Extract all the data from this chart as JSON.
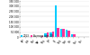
{
  "months": [
    "Jan",
    "Feb",
    "Mar",
    "Apr",
    "May",
    "Jun",
    "Jul",
    "Aug",
    "Sep",
    "Oct",
    "Nov",
    "Dec"
  ],
  "series_2013": [
    300,
    300,
    1500,
    6000,
    40000,
    50000,
    310000,
    85000,
    70000,
    30000,
    6000,
    800
  ],
  "series_avg": [
    800,
    800,
    2500,
    10000,
    50000,
    60000,
    95000,
    80000,
    65000,
    28000,
    6000,
    1200
  ],
  "color_2013": "#00ccff",
  "color_avg": "#ff3399",
  "ylim": [
    0,
    350000
  ],
  "yticks": [
    0,
    50000,
    100000,
    150000,
    200000,
    250000,
    300000,
    350000
  ],
  "ytick_labels": [
    "0",
    "50 000",
    "100 000",
    "150 000",
    "200 000",
    "250 000",
    "300 000",
    "350 000"
  ],
  "legend_2013": "2013",
  "legend_avg": "Average age 20",
  "background_color": "#ffffff",
  "grid_color": "#dddddd"
}
